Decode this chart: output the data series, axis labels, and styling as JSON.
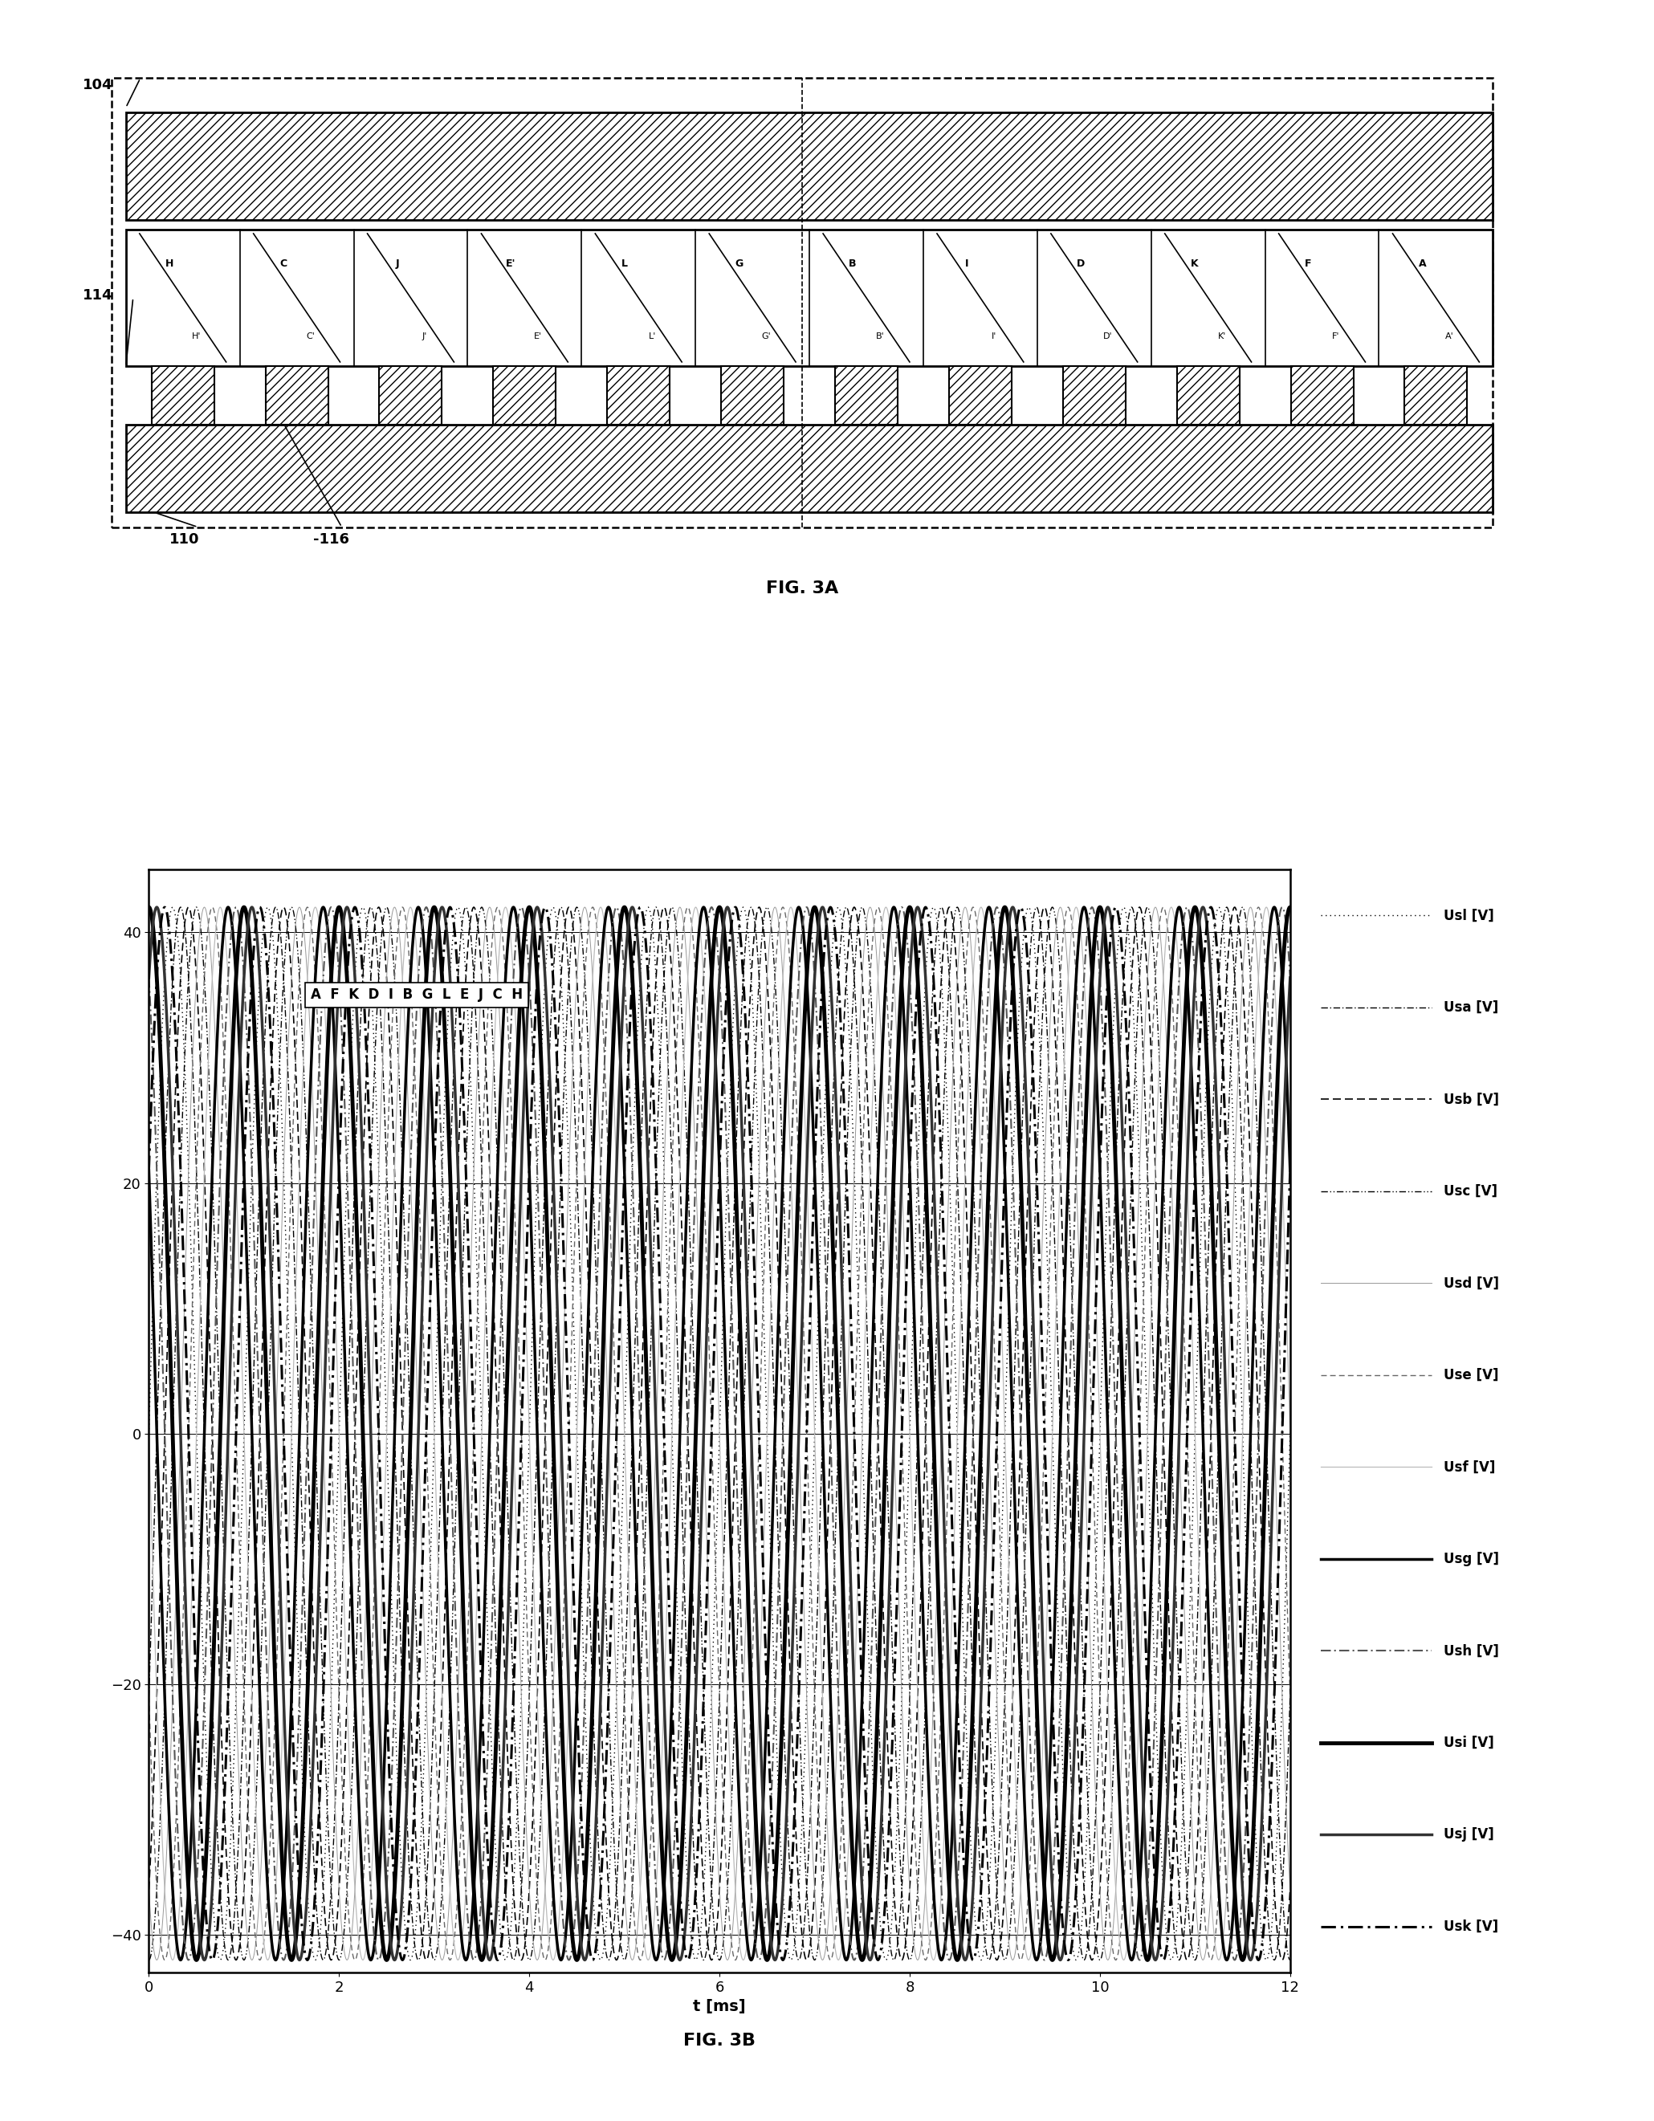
{
  "fig3a": {
    "label_104": "104",
    "label_110": "110",
    "label_114": "114",
    "label_116": "-116",
    "slots_top": [
      "H",
      "C",
      "J",
      "E'",
      "L",
      "G",
      "B",
      "I",
      "D",
      "K",
      "F",
      "A"
    ],
    "slots_bottom": [
      "H'",
      "C'",
      "J'",
      "E'",
      "L'",
      "G'",
      "B'",
      "I'",
      "D'",
      "K'",
      "F'",
      "A'"
    ],
    "n_slots": 12,
    "n_teeth": 12,
    "title": "FIG. 3A"
  },
  "fig3b": {
    "amplitude": 42.0,
    "frequency_hz": 1000.0,
    "t_start": 0.0,
    "t_end": 12.0,
    "n_phases": 12,
    "phase_labels": [
      "A",
      "F",
      "K",
      "D",
      "I",
      "B",
      "G",
      "L",
      "E",
      "J",
      "C",
      "H"
    ],
    "legend_labels": [
      "Usl [V]",
      "Usa [V]",
      "Usb [V]",
      "Usc [V]",
      "Usd [V]",
      "Use [V]",
      "Usf [V]",
      "Usg [V]",
      "Ush [V]",
      "Usi [V]",
      "Usj [V]",
      "Usk [V]"
    ],
    "yticks": [
      -40,
      -20,
      0,
      20,
      40
    ],
    "xticks": [
      0,
      2,
      4,
      6,
      8,
      10,
      12
    ],
    "xlabel": "t [ms]",
    "title": "FIG. 3B",
    "phase_offsets_deg": [
      0,
      30,
      60,
      90,
      120,
      150,
      180,
      210,
      240,
      270,
      300,
      330
    ]
  },
  "background_color": "#ffffff"
}
